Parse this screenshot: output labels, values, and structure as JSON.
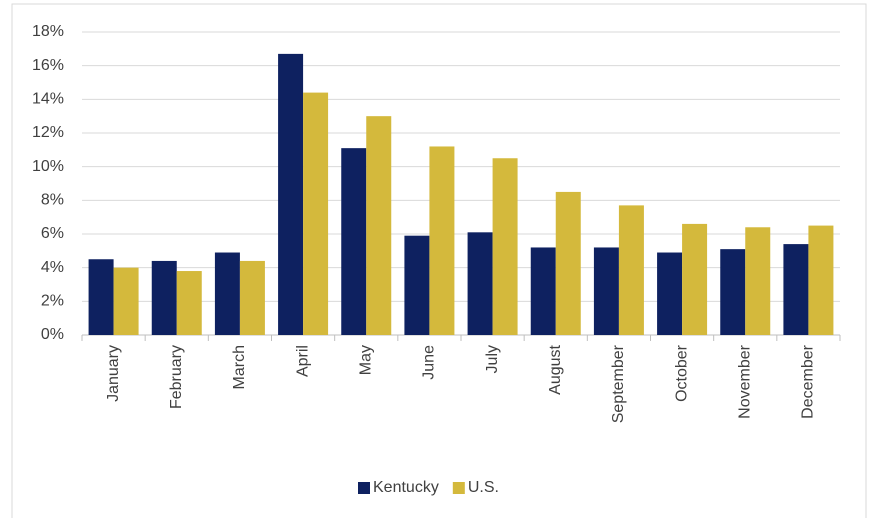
{
  "chart_data": {
    "type": "bar",
    "categories": [
      "January",
      "February",
      "March",
      "April",
      "May",
      "June",
      "July",
      "August",
      "September",
      "October",
      "November",
      "December"
    ],
    "series": [
      {
        "name": "Kentucky",
        "color": "#0e2160",
        "values": [
          4.5,
          4.4,
          4.9,
          16.7,
          11.1,
          5.9,
          6.1,
          5.2,
          5.2,
          4.9,
          5.1,
          5.4
        ]
      },
      {
        "name": "U.S.",
        "color": "#d4b93c",
        "values": [
          4.0,
          3.8,
          4.4,
          14.4,
          13.0,
          11.2,
          10.5,
          8.5,
          7.7,
          6.6,
          6.4,
          6.5
        ]
      }
    ],
    "ylim": [
      0,
      18
    ],
    "yticks": [
      {
        "value": 0,
        "label": "0%"
      },
      {
        "value": 2,
        "label": "2%"
      },
      {
        "value": 4,
        "label": "4%"
      },
      {
        "value": 6,
        "label": "6%"
      },
      {
        "value": 8,
        "label": "8%"
      },
      {
        "value": 10,
        "label": "10%"
      },
      {
        "value": 12,
        "label": "12%"
      },
      {
        "value": 14,
        "label": "14%"
      },
      {
        "value": 16,
        "label": "16%"
      },
      {
        "value": 18,
        "label": "18%"
      }
    ],
    "grid": true,
    "legend": "bottom"
  }
}
